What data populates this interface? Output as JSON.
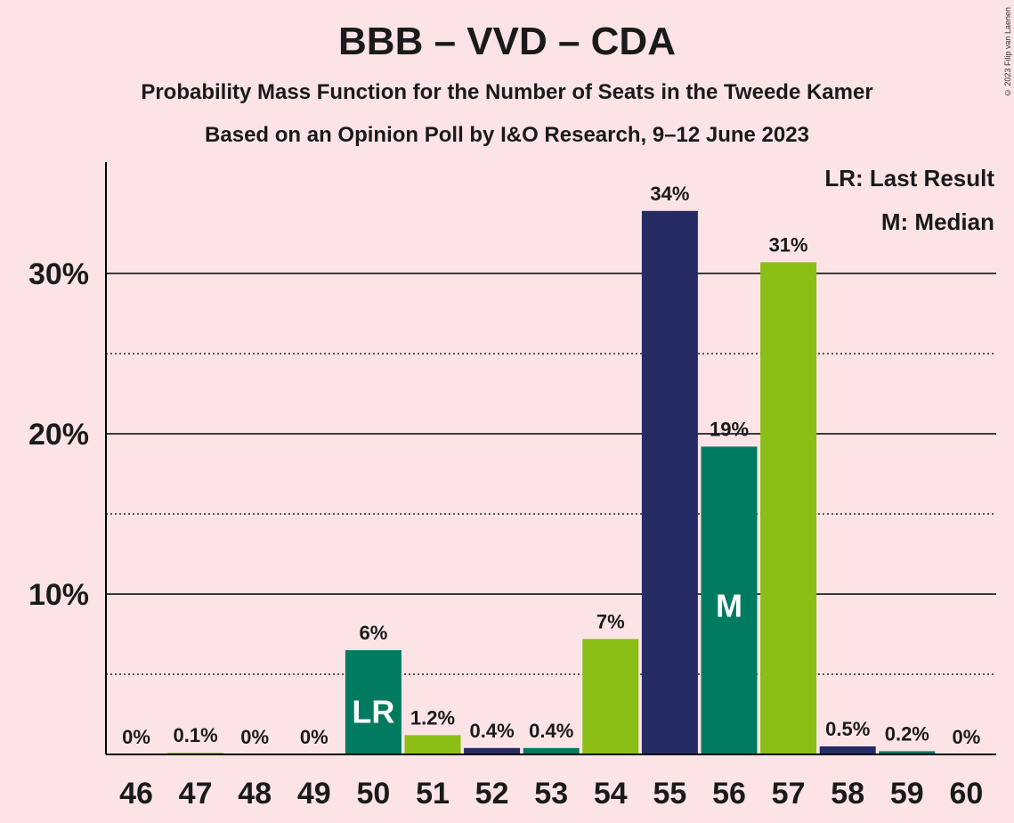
{
  "title": "BBB – VVD – CDA",
  "subtitle1": "Probability Mass Function for the Number of Seats in the Tweede Kamer",
  "subtitle2": "Based on an Opinion Poll by I&O Research, 9–12 June 2023",
  "copyright": "© 2023 Filip van Laenen",
  "legend": {
    "lr": "LR: Last Result",
    "m": "M: Median"
  },
  "colors": {
    "background": "#fce4e6",
    "bbb": "#8bbf15",
    "vvd": "#262b66",
    "cda": "#007b5f",
    "gridline": "#000000"
  },
  "chart_data": {
    "type": "bar",
    "categories": [
      "46",
      "47",
      "48",
      "49",
      "50",
      "51",
      "52",
      "53",
      "54",
      "55",
      "56",
      "57",
      "58",
      "59",
      "60"
    ],
    "values": [
      0,
      0.1,
      0,
      0,
      6.5,
      1.2,
      0.4,
      0.4,
      7.2,
      33.9,
      19.2,
      30.7,
      0.5,
      0.2,
      0
    ],
    "value_labels": [
      "0%",
      "0.1%",
      "0%",
      "0%",
      "6%",
      "1.2%",
      "0.4%",
      "0.4%",
      "7%",
      "34%",
      "19%",
      "31%",
      "0.5%",
      "0.2%",
      "0%"
    ],
    "bar_colors": [
      "#007b5f",
      "#8bbf15",
      "#262b66",
      "#007b5f",
      "#007b5f",
      "#8bbf15",
      "#262b66",
      "#007b5f",
      "#8bbf15",
      "#262b66",
      "#007b5f",
      "#8bbf15",
      "#262b66",
      "#007b5f",
      "#8bbf15"
    ],
    "y_ticks": [
      10,
      20,
      30
    ],
    "y_tick_labels": [
      "10%",
      "20%",
      "30%"
    ],
    "y_minor_ticks": [
      5,
      15,
      25
    ],
    "ylim": [
      0,
      37
    ],
    "markers": [
      {
        "category": "50",
        "label": "LR"
      },
      {
        "category": "56",
        "label": "M"
      }
    ],
    "legend_position": "top-right",
    "grid": true
  }
}
